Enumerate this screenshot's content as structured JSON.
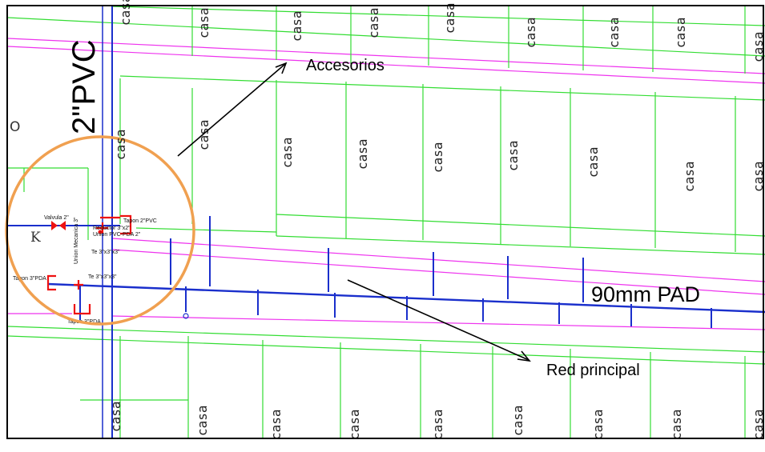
{
  "colors": {
    "lot_lines": "#33dd33",
    "street_lines": "#ee33ee",
    "water_lines": "#1a2fcc",
    "fittings": "#ee1111",
    "circle": "#f0a050",
    "border": "#000000"
  },
  "labels": {
    "pvc": "2\"PVC",
    "pad": "90mm PAD",
    "accesorios": "Accesorios",
    "red_principal": "Red principal",
    "letter_o": "O",
    "letter_k": "K",
    "casa": "casa"
  },
  "fittings": {
    "tapon_top": "Tapon 2\"PVC",
    "tapon_left": "Tapon 3\"PDA",
    "tapon_bottom": "Tapon 3\"PDA",
    "te_upper": "Te 3\"x3\"x3\"",
    "te_lower": "Te 3\"x3\"x3\"",
    "valve": "Valvula 2\"",
    "reductor": "Reductor 3\"x2\"",
    "union": "Union PVC-PDA 2\"",
    "union_vertical": "Union Mecanica 3\""
  }
}
